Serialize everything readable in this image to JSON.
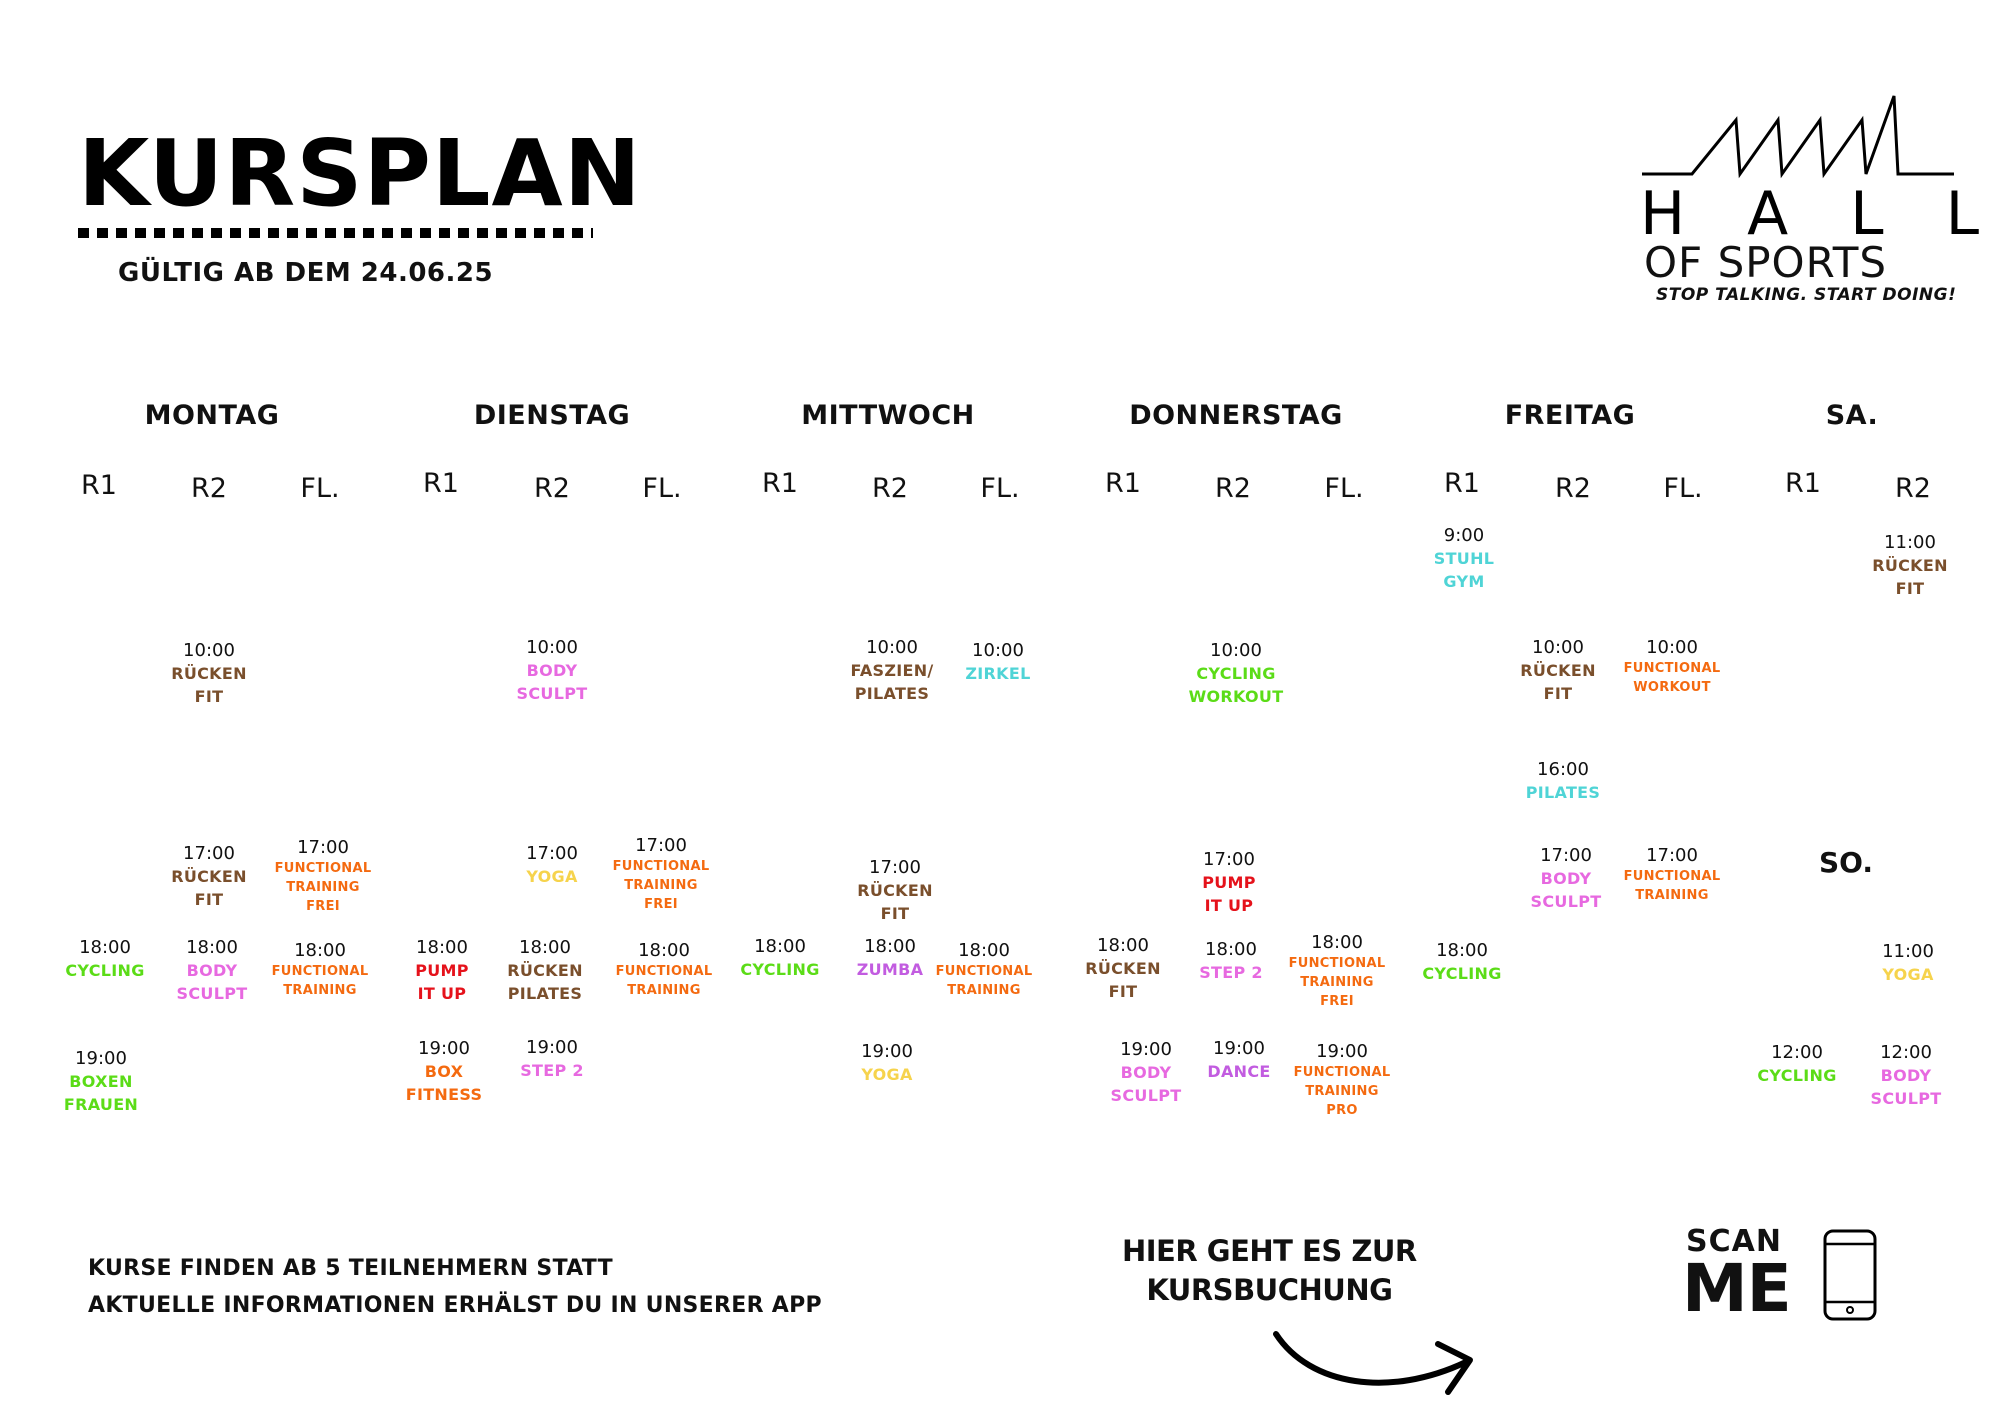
{
  "header": {
    "title": "KURSPLAN",
    "valid_from": "GÜLTIG AB DEM 24.06.25"
  },
  "logo": {
    "line1": "HALL",
    "line2": "OF SPORTS",
    "tagline": "STOP TALKING. START DOING!"
  },
  "days": [
    "MONTAG",
    "DIENSTAG",
    "MITTWOCH",
    "DONNERSTAG",
    "FREITAG",
    "SA."
  ],
  "sunday_label": "SO.",
  "colors": {
    "brown": "#7a4f2c",
    "pink": "#e769e0",
    "green": "#5bdc17",
    "cyan": "#4fd4d6",
    "orange": "#f46a10",
    "yellow": "#f6d34c",
    "red": "#e5121b",
    "purple": "#c25ce0"
  },
  "rooms": [
    "R1",
    "R2",
    "FL.",
    "R1",
    "R2",
    "FL.",
    "R1",
    "R2",
    "FL.",
    "R1",
    "R2",
    "FL.",
    "R1",
    "R2",
    "FL.",
    "R1",
    "R2"
  ],
  "entries": [
    {
      "time": "10:00",
      "name": "RÜCKEN\nFIT",
      "color": "brown"
    },
    {
      "time": "17:00",
      "name": "RÜCKEN\nFIT",
      "color": "brown"
    },
    {
      "time": "17:00",
      "name": "FUNCTIONAL\nTRAINING\nFREI",
      "color": "orange"
    },
    {
      "time": "18:00",
      "name": "CYCLING",
      "color": "green"
    },
    {
      "time": "18:00",
      "name": "BODY\nSCULPT",
      "color": "pink"
    },
    {
      "time": "18:00",
      "name": "FUNCTIONAL\nTRAINING",
      "color": "orange"
    },
    {
      "time": "19:00",
      "name": "BOXEN\nFRAUEN",
      "color": "green"
    },
    {
      "time": "10:00",
      "name": "BODY\nSCULPT",
      "color": "pink"
    },
    {
      "time": "17:00",
      "name": "YOGA",
      "color": "yellow"
    },
    {
      "time": "17:00",
      "name": "FUNCTIONAL\nTRAINING\nFREI",
      "color": "orange"
    },
    {
      "time": "18:00",
      "name": "PUMP\nIT UP",
      "color": "red"
    },
    {
      "time": "18:00",
      "name": "RÜCKEN\nPILATES",
      "color": "brown"
    },
    {
      "time": "18:00",
      "name": "FUNCTIONAL\nTRAINING",
      "color": "orange"
    },
    {
      "time": "19:00",
      "name": "BOX\nFITNESS",
      "color": "orange"
    },
    {
      "time": "19:00",
      "name": "STEP 2",
      "color": "pink"
    },
    {
      "time": "10:00",
      "name": "FASZIEN/\nPILATES",
      "color": "brown"
    },
    {
      "time": "10:00",
      "name": "ZIRKEL",
      "color": "cyan"
    },
    {
      "time": "17:00",
      "name": "RÜCKEN\nFIT",
      "color": "brown"
    },
    {
      "time": "18:00",
      "name": "CYCLING",
      "color": "green"
    },
    {
      "time": "18:00",
      "name": "ZUMBA",
      "color": "purple"
    },
    {
      "time": "18:00",
      "name": "FUNCTIONAL\nTRAINING",
      "color": "orange"
    },
    {
      "time": "19:00",
      "name": "YOGA",
      "color": "yellow"
    },
    {
      "time": "10:00",
      "name": "CYCLING\nWORKOUT",
      "color": "green"
    },
    {
      "time": "17:00",
      "name": "PUMP\nIT UP",
      "color": "red"
    },
    {
      "time": "18:00",
      "name": "RÜCKEN\nFIT",
      "color": "brown"
    },
    {
      "time": "18:00",
      "name": "STEP 2",
      "color": "pink"
    },
    {
      "time": "18:00",
      "name": "FUNCTIONAL\nTRAINING\nFREI",
      "color": "orange"
    },
    {
      "time": "19:00",
      "name": "BODY\nSCULPT",
      "color": "pink"
    },
    {
      "time": "19:00",
      "name": "DANCE",
      "color": "purple"
    },
    {
      "time": "19:00",
      "name": "FUNCTIONAL\nTRAINING\nPRO",
      "color": "orange"
    },
    {
      "time": "9:00",
      "name": "STUHL\nGYM",
      "color": "cyan"
    },
    {
      "time": "10:00",
      "name": "RÜCKEN\nFIT",
      "color": "brown"
    },
    {
      "time": "10:00",
      "name": "FUNCTIONAL\nWORKOUT",
      "color": "orange"
    },
    {
      "time": "16:00",
      "name": "PILATES",
      "color": "cyan"
    },
    {
      "time": "17:00",
      "name": "BODY\nSCULPT",
      "color": "pink"
    },
    {
      "time": "17:00",
      "name": "FUNCTIONAL\nTRAINING",
      "color": "orange"
    },
    {
      "time": "18:00",
      "name": "CYCLING",
      "color": "green"
    },
    {
      "time": "11:00",
      "name": "RÜCKEN\nFIT",
      "color": "brown"
    },
    {
      "time": "11:00",
      "name": "YOGA",
      "color": "yellow"
    },
    {
      "time": "12:00",
      "name": "CYCLING",
      "color": "green"
    },
    {
      "time": "12:00",
      "name": "BODY\nSCULPT",
      "color": "pink"
    }
  ],
  "footer": {
    "info_line1": "KURSE FINDEN AB 5 TEILNEHMERN STATT",
    "info_line2": "AKTUELLE INFORMATIONEN ERHÄLST DU IN UNSERER APP",
    "booking_line1": "HIER GEHT ES ZUR",
    "booking_line2": "KURSBUCHUNG",
    "scan_line1": "SCAN",
    "scan_line2": "ME"
  }
}
